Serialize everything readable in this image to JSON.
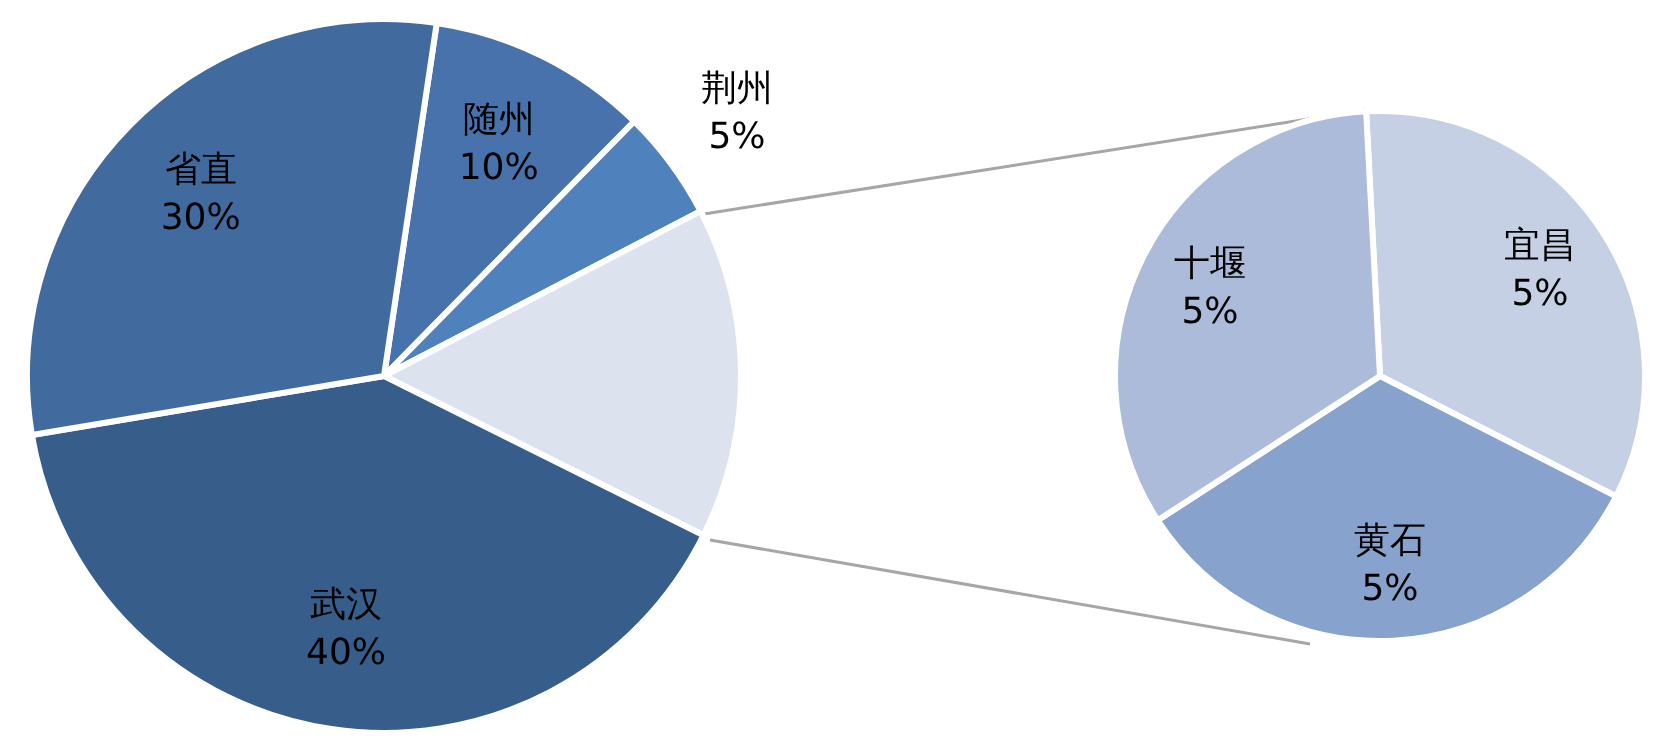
{
  "chart_data": [
    {
      "type": "pie",
      "categories": [
        "随州",
        "荆州",
        null,
        "武汉",
        "省直"
      ],
      "values": [
        10,
        5,
        15,
        40,
        30
      ],
      "value_labels": [
        "10%",
        "5%",
        null,
        "40%",
        "30%"
      ],
      "colors": [
        "#4772ab",
        "#4f81bd",
        "#dce3ef",
        "#375d8a",
        "#416b9f"
      ],
      "legend": false
    },
    {
      "type": "pie",
      "categories": [
        "宜昌",
        "黄石",
        "十堰"
      ],
      "values": [
        5,
        5,
        5
      ],
      "value_labels": [
        "5%",
        "5%",
        "5%"
      ],
      "colors": [
        "#c5d0e4",
        "#87a2cc",
        "#abbbd9"
      ],
      "legend": false
    }
  ]
}
